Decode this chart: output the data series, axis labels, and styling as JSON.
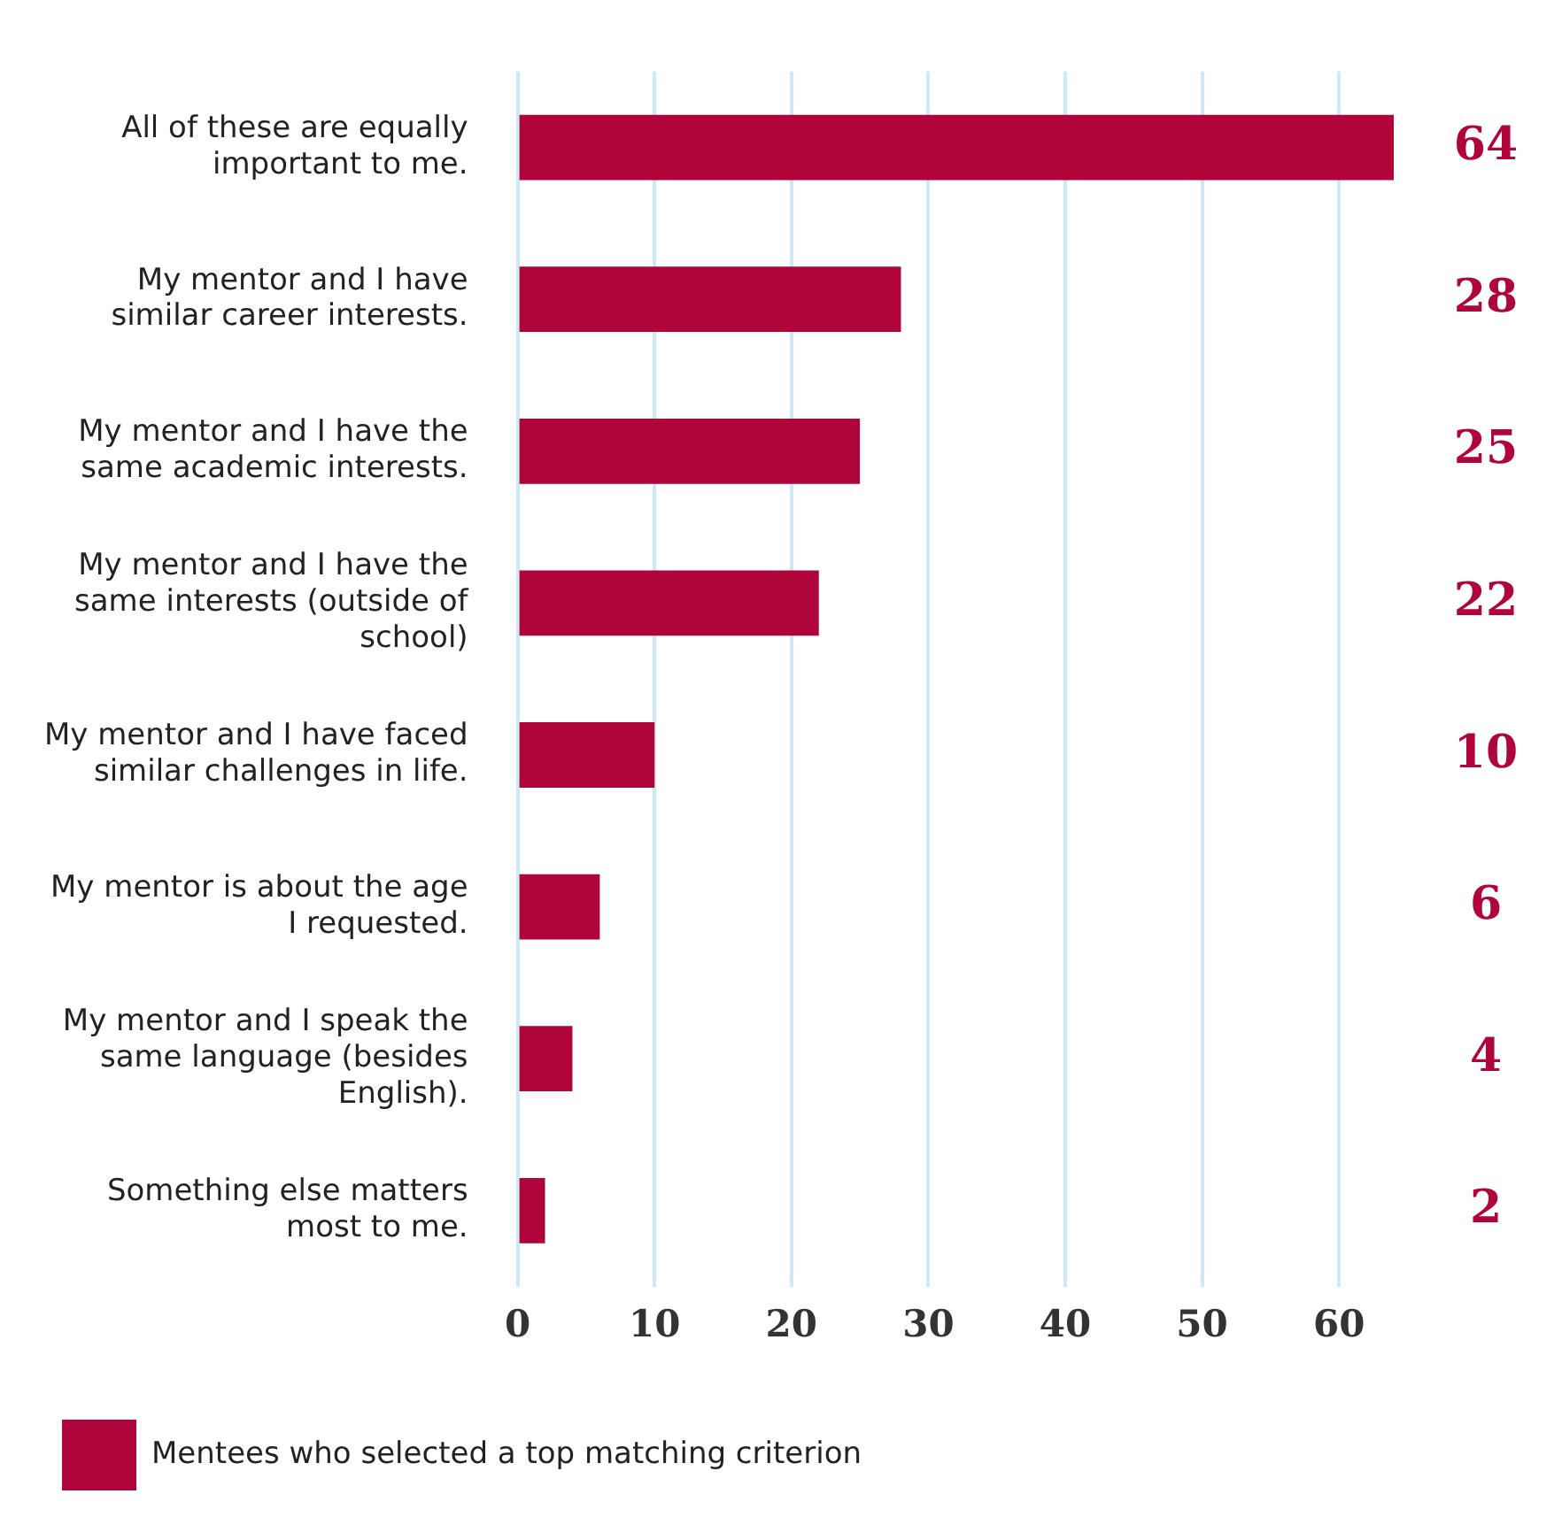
{
  "chart_data": {
    "type": "bar",
    "orientation": "horizontal",
    "categories": [
      "All of these are equally important to me.",
      "My mentor and I have similar career interests.",
      "My mentor and I have the same academic interests.",
      "My mentor and I have the same interests (outside of school)",
      "My mentor and I have faced similar challenges in life.",
      "My mentor is about the age I requested.",
      "My mentor and I speak the same language (besides English).",
      "Something else matters most to me."
    ],
    "series": [
      {
        "name": "Mentees who selected a top matching criterion",
        "color": "#b0053a",
        "values": [
          64,
          28,
          25,
          22,
          10,
          6,
          4,
          2
        ]
      }
    ],
    "xlim": [
      0,
      64
    ],
    "xticks": [
      0,
      10,
      20,
      30,
      40,
      50,
      60
    ],
    "grid": "x",
    "legend": "bottom",
    "data_labels": true
  }
}
